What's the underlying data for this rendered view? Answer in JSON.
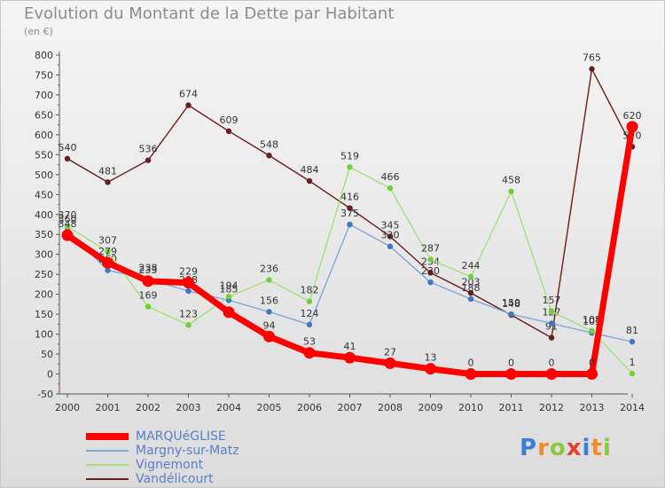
{
  "page": {
    "title": "Evolution du Montant de la Dette par Habitant",
    "unit": "(en €)",
    "logo": "Proxiti"
  },
  "logo_colors": [
    "#3b7dd8",
    "#f28c28",
    "#8dc63f",
    "#e4402e",
    "#3b7dd8",
    "#f28c28",
    "#8dc63f"
  ],
  "chart_data": {
    "type": "line",
    "title": "Evolution du Montant de la Dette par Habitant",
    "ylabel": "(en €)",
    "xlabel": "",
    "ylim": [
      -50,
      800
    ],
    "yticks": [
      -50,
      0,
      50,
      100,
      150,
      200,
      250,
      300,
      350,
      400,
      450,
      500,
      550,
      600,
      650,
      700,
      750,
      800
    ],
    "grid": false,
    "legend": "bottom-left",
    "x": [
      "2000",
      "2001",
      "2002",
      "2003",
      "2004",
      "2005",
      "2006",
      "2007",
      "2008",
      "2009",
      "2010",
      "2011",
      "2012",
      "2013",
      "2014"
    ],
    "series": [
      {
        "name": "Vandélicourt",
        "color": "#6b1c1c",
        "marker": "#6b1c1c",
        "values": [
          540,
          481,
          536,
          674,
          609,
          548,
          484,
          416,
          345,
          254,
          203,
          148,
          91,
          765,
          570
        ],
        "labels": [
          "540",
          "481",
          "536",
          "674",
          "609",
          "548",
          "484",
          "416",
          "345",
          "254",
          "203",
          "148",
          "91",
          "765",
          "570"
        ]
      },
      {
        "name": "Margny-sur-Matz",
        "color": "#7fa8d8",
        "marker": "#3f77c0",
        "values": [
          360,
          260,
          238,
          208,
          185,
          156,
          124,
          375,
          320,
          230,
          188,
          150,
          127,
          103,
          81
        ],
        "labels": [
          "360",
          "260",
          "238",
          "208",
          "185",
          "156",
          "124",
          "375",
          "320",
          "230",
          "188",
          "150",
          "127",
          "103",
          "81"
        ]
      },
      {
        "name": "Vignemont",
        "color": "#a6e07a",
        "marker": "#6fd03a",
        "values": [
          370,
          307,
          169,
          123,
          194,
          236,
          182,
          519,
          466,
          287,
          244,
          458,
          157,
          108,
          1
        ],
        "labels": [
          "370",
          "307",
          "169",
          "123",
          "194",
          "236",
          "182",
          "519",
          "466",
          "287",
          "244",
          "458",
          "157",
          "108",
          "1"
        ]
      },
      {
        "name": "MARQUéGLISE",
        "color": "#ff0000",
        "marker": "#ff0000",
        "values": [
          348,
          279,
          233,
          229,
          155,
          94,
          53,
          41,
          27,
          13,
          0,
          0,
          0,
          0,
          620
        ],
        "labels": [
          "348",
          "279",
          "233",
          "229",
          "",
          "94",
          "53",
          "41",
          "27",
          "13",
          "0",
          "0",
          "0",
          "0",
          "620"
        ]
      }
    ]
  },
  "legend_items": [
    {
      "label": "MARQUéGLISE",
      "color": "#ff0000"
    },
    {
      "label": "Margny-sur-Matz",
      "color": "#7fa8d8"
    },
    {
      "label": "Vignemont",
      "color": "#a6e07a"
    },
    {
      "label": "Vandélicourt",
      "color": "#6b1c1c"
    }
  ]
}
